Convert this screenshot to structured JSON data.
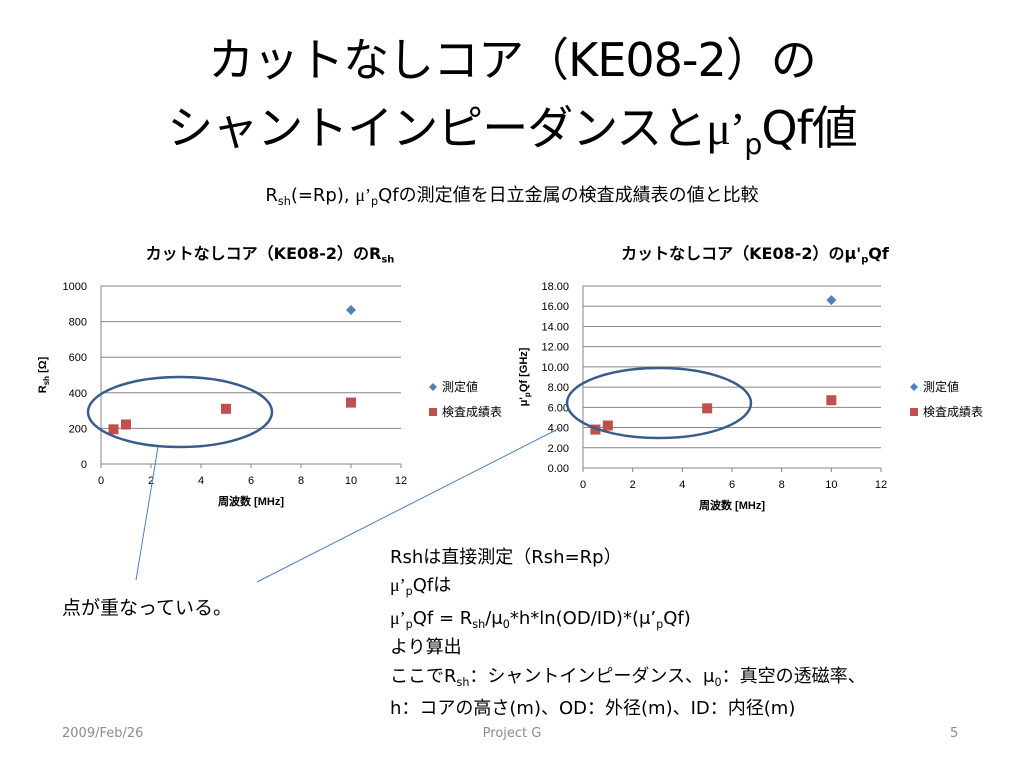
{
  "slide": {
    "title_line1": "カットなしコア（KE08-2）の",
    "title_line2_pre": "シャントインピーダンスと",
    "mu": "μ’",
    "p": "p",
    "qf": "Qf値",
    "subtitle_r": "R",
    "subtitle_sh": "sh",
    "subtitle_mid": "(=Rp), ",
    "subtitle_mu": "μ’",
    "subtitle_p": "p",
    "subtitle_rest": "Qfの測定値を日立金属の検査成績表の値と比較",
    "callout": "点が重なっている。",
    "note": {
      "line1": "Rshは直接測定（Rsh=Rp）",
      "line2_mu": "μ’",
      "line2_p": "p",
      "line2_rest": "Qfは",
      "line3_a": "μ’",
      "line3_p": "p",
      "line3_b": "Qf = R",
      "line3_sh": "sh",
      "line3_c": "/μ",
      "line3_0": "0",
      "line3_d": "*h*ln(OD/ID)*(μ’",
      "line3_p2": "p",
      "line3_e": "Qf)",
      "line4": "より算出",
      "line5_a": "ここでR",
      "line5_sh": "sh",
      "line5_b": "：シャントインピーダンス、μ",
      "line5_0": "0",
      "line5_c": "：真空の透磁率、",
      "line6": "h：コアの高さ(m)、OD：外径(m)、ID：内径(m)"
    },
    "footer": {
      "date": "2009/Feb/26",
      "project": "Project G",
      "page": "5"
    },
    "colors": {
      "measured": "#4F81BD",
      "inspection": "#C0504D",
      "ellipse": "#385D8A",
      "grid": "#868686"
    }
  },
  "chart_data": [
    {
      "type": "scatter",
      "title_main": "カットなしコア（KE08-2）のR",
      "title_sub": "sh",
      "xlabel": "周波数 [MHz]",
      "ylabel_main": "R",
      "ylabel_sub": "sh",
      "ylabel_rest": " [Ω]",
      "xlim": [
        0,
        12
      ],
      "ylim": [
        0,
        1000
      ],
      "xticks": [
        "0",
        "2",
        "4",
        "6",
        "8",
        "10",
        "12"
      ],
      "yticks": [
        "0",
        "200",
        "400",
        "600",
        "800",
        "1000"
      ],
      "grid": true,
      "legend_position": "right",
      "series": [
        {
          "name": "測定値",
          "marker": "diamond",
          "points": [
            [
              10,
              865
            ]
          ]
        },
        {
          "name": "検査成績表",
          "marker": "square",
          "points": [
            [
              0.5,
              195
            ],
            [
              1,
              222
            ],
            [
              5,
              310
            ],
            [
              10,
              345
            ]
          ]
        }
      ]
    },
    {
      "type": "scatter",
      "title_main": "カットなしコア（KE08-2）のμ'",
      "title_sub": "p",
      "title_rest": "Qf",
      "xlabel": "周波数 [MHz]",
      "ylabel_main": "μ'",
      "ylabel_sub": "p",
      "ylabel_rest": "Qf [GHz]",
      "xlim": [
        0,
        12
      ],
      "ylim": [
        0,
        18
      ],
      "xticks": [
        "0",
        "2",
        "4",
        "6",
        "8",
        "10",
        "12"
      ],
      "yticks": [
        "0.00",
        "2.00",
        "4.00",
        "6.00",
        "8.00",
        "10.00",
        "12.00",
        "14.00",
        "16.00",
        "18.00"
      ],
      "grid": true,
      "legend_position": "right",
      "series": [
        {
          "name": "測定値",
          "marker": "diamond",
          "points": [
            [
              10,
              16.6
            ]
          ]
        },
        {
          "name": "検査成績表",
          "marker": "square",
          "points": [
            [
              0.5,
              3.8
            ],
            [
              1,
              4.2
            ],
            [
              5,
              5.9
            ],
            [
              10,
              6.7
            ]
          ]
        }
      ]
    }
  ]
}
